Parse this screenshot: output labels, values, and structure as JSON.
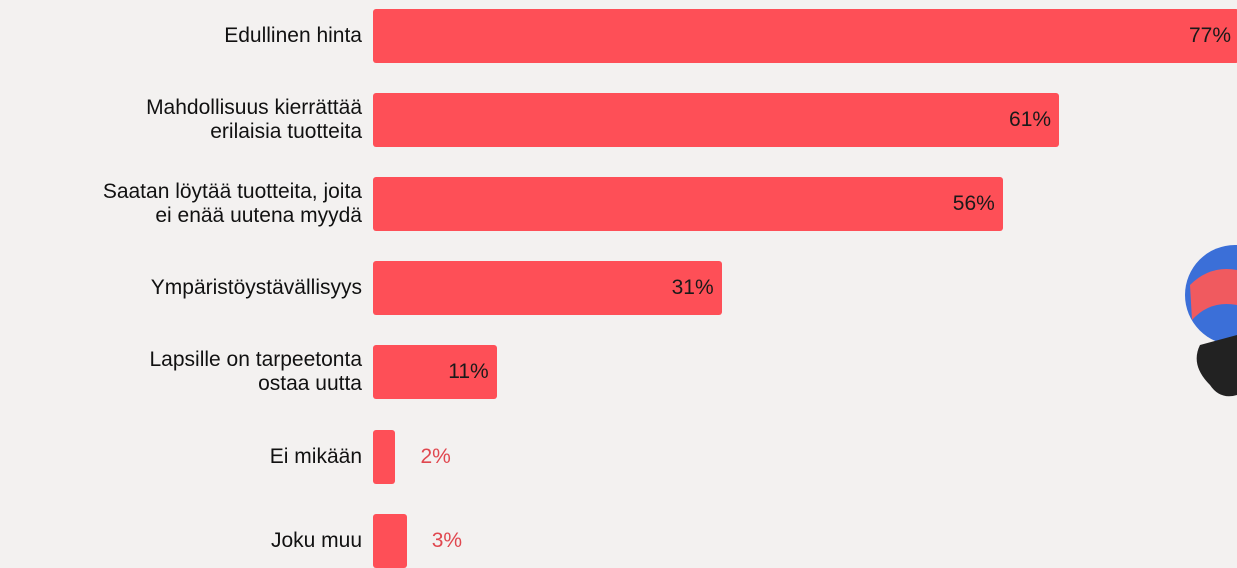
{
  "chart_data": {
    "type": "bar",
    "orientation": "horizontal",
    "categories": [
      "Edullinen hinta",
      "Mahdollisuus kierrättää\nerilaisia tuotteita",
      "Saatan löytää tuotteita, joita\nei enää uutena myydä",
      "Ympäristöystävällisyys",
      "Lapsille on tarpeetonta\nostaa uutta",
      "Ei mikään",
      "Joku muu"
    ],
    "values": [
      77,
      61,
      56,
      31,
      11,
      2,
      3
    ],
    "value_labels": [
      "77%",
      "61%",
      "56%",
      "31%",
      "11%",
      "2%",
      "3%"
    ],
    "color": "#fe4f57"
  }
}
